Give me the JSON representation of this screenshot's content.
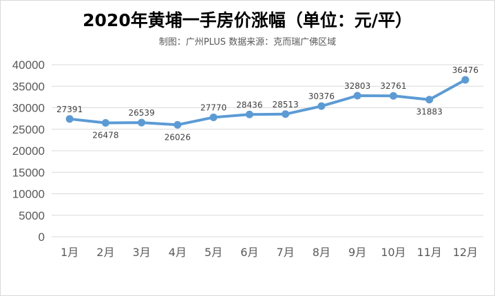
{
  "title": "2020年黄埔一手房价涨幅（单位：元/平）",
  "subtitle": "制图：广州PLUS  数据来源：克而瑞广佛区域",
  "colors": {
    "line": "#5b9bd5",
    "grid": "#d9d9d9",
    "text": "#595959"
  },
  "chart_data": {
    "type": "line",
    "title": "2020年黄埔一手房价涨幅（单位：元/平）",
    "categories": [
      "1月",
      "2月",
      "3月",
      "4月",
      "5月",
      "6月",
      "7月",
      "8月",
      "9月",
      "10月",
      "11月",
      "12月"
    ],
    "series": [
      {
        "values": [
          27391,
          26478,
          26539,
          26026,
          27770,
          28436,
          28513,
          30376,
          32803,
          32761,
          31883,
          36476
        ]
      }
    ],
    "ylim": [
      0,
      40000
    ],
    "yticks": [
      0,
      5000,
      10000,
      15000,
      20000,
      25000,
      30000,
      35000,
      40000
    ],
    "grid": true,
    "data_labels": true
  }
}
